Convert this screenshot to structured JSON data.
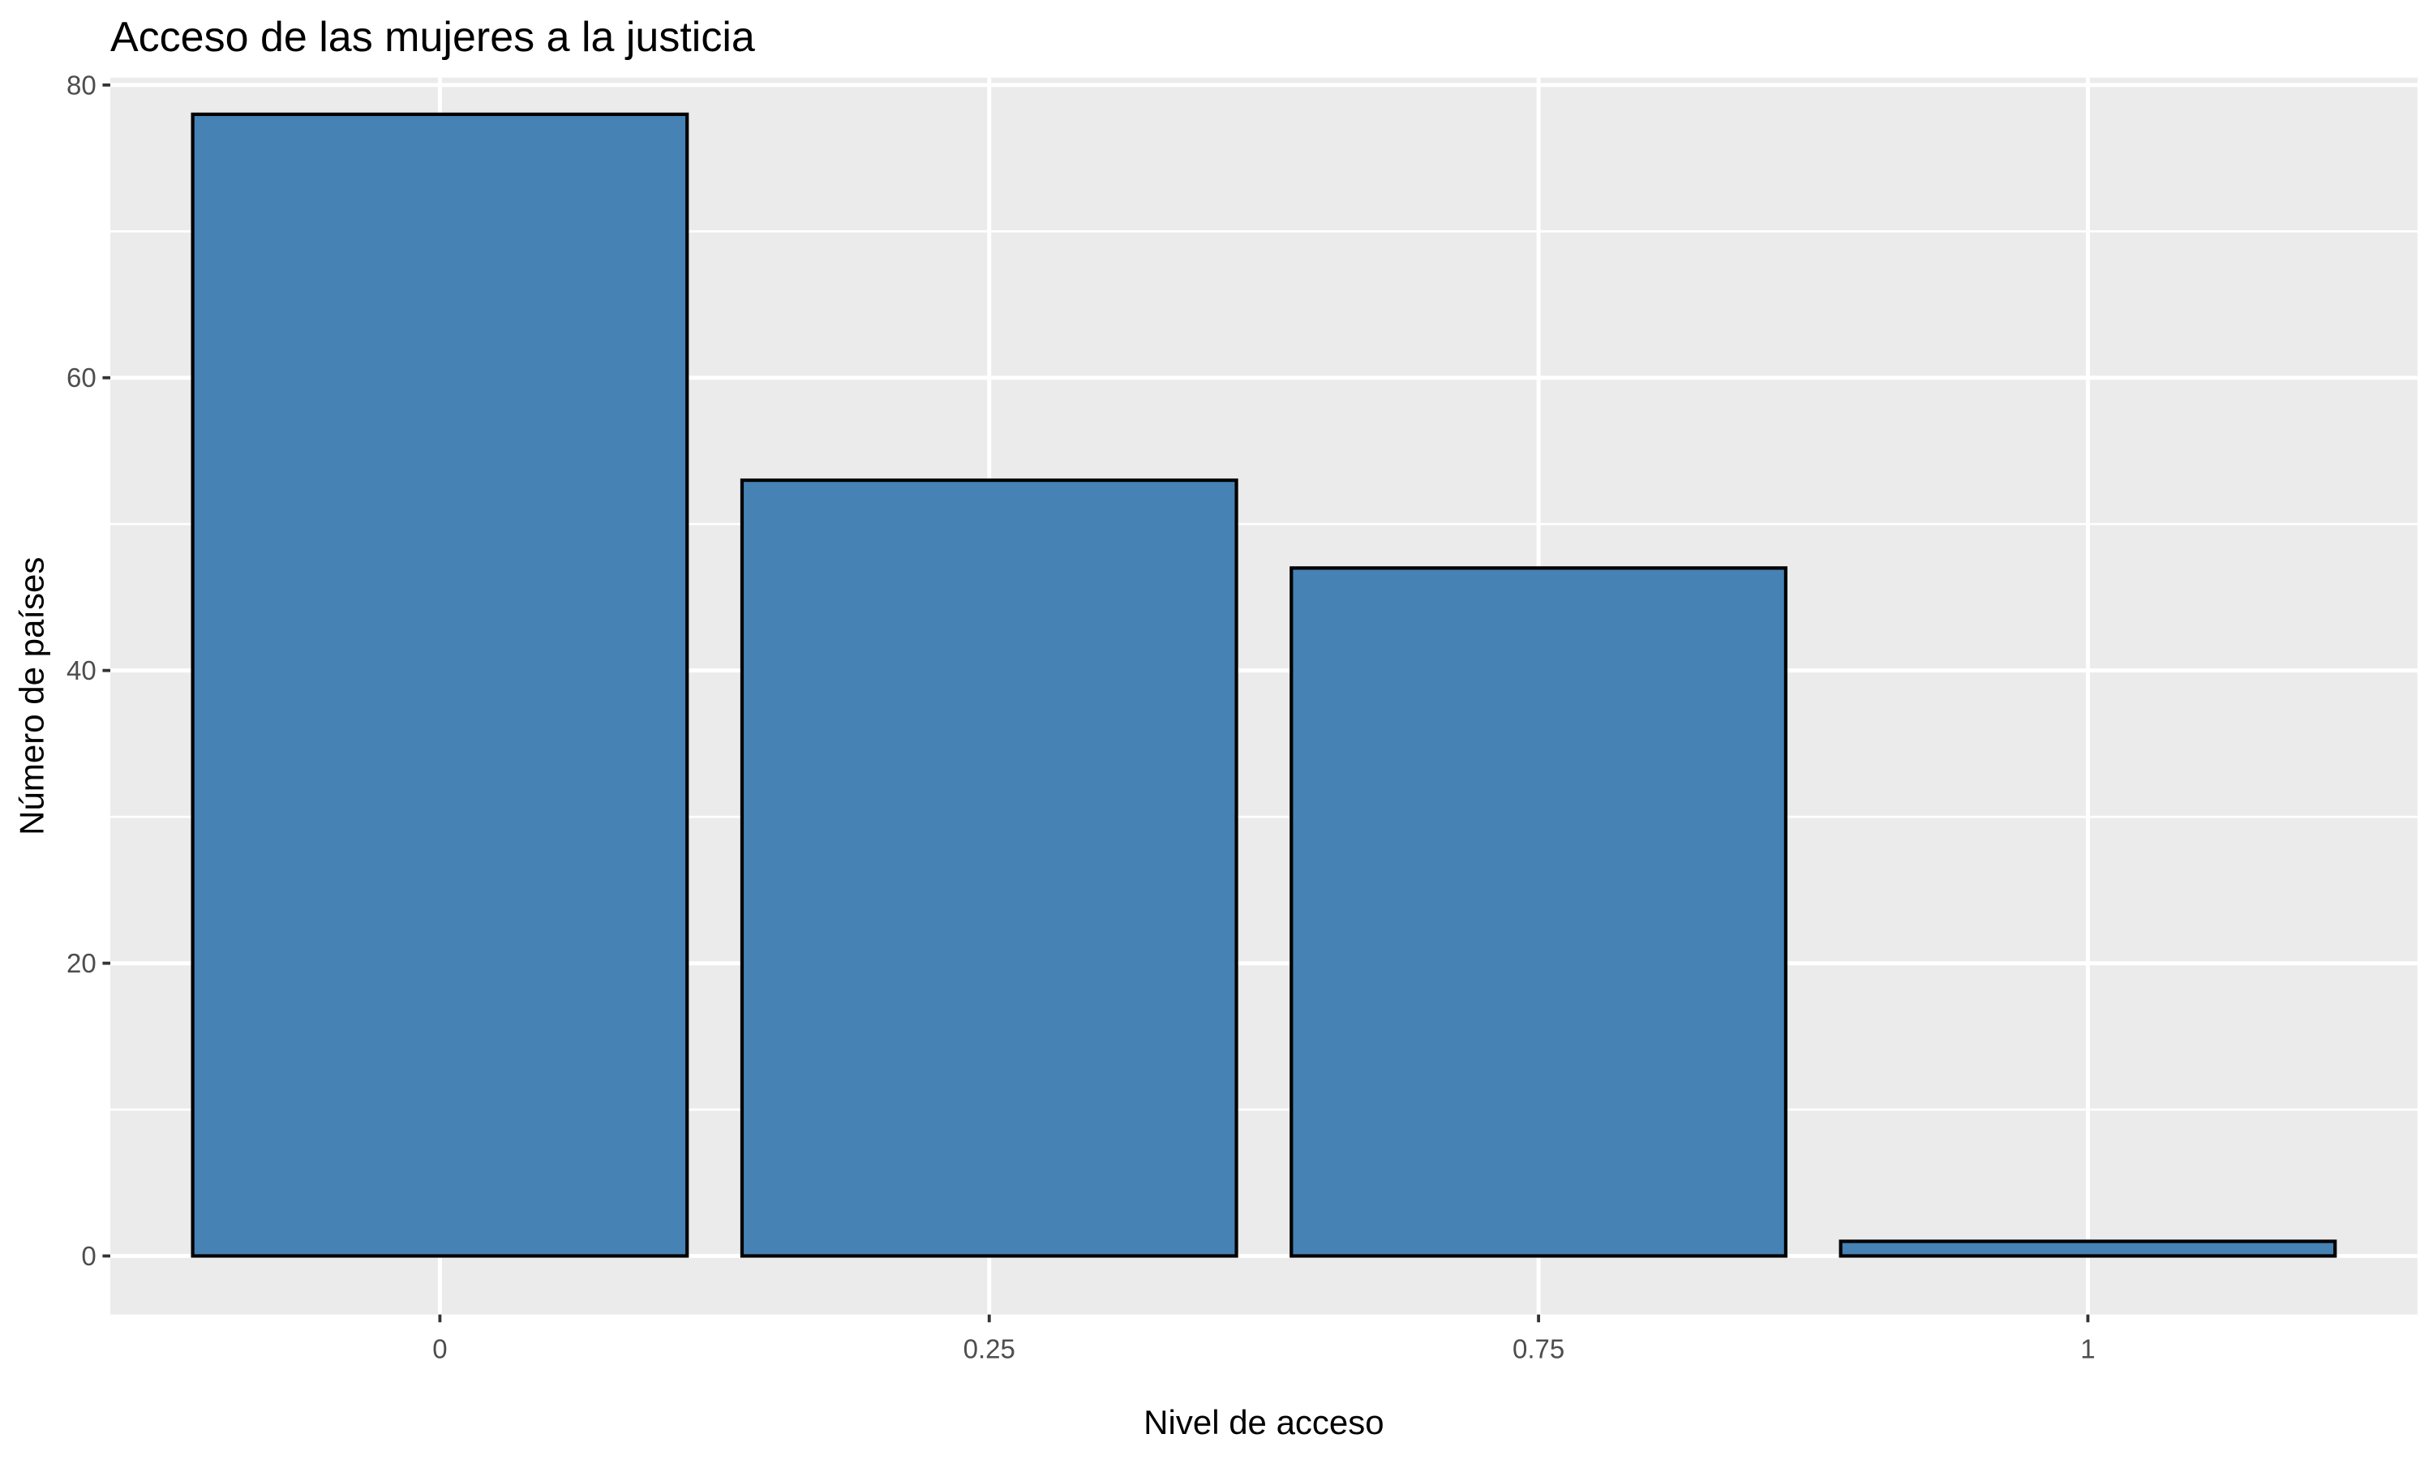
{
  "chart_data": {
    "type": "bar",
    "title": "Acceso de las mujeres a la justicia",
    "xlabel": "Nivel de acceso",
    "ylabel": "Número de países",
    "categories": [
      "0",
      "0.25",
      "0.75",
      "1"
    ],
    "values": [
      78,
      53,
      47,
      1
    ],
    "ylim": [
      -4,
      80.5
    ],
    "yticks": [
      0,
      20,
      40,
      60,
      80
    ],
    "yticks_minor": [
      10,
      30,
      50,
      70
    ],
    "grid": true,
    "legend": "none",
    "colors": {
      "bar_fill": "#4682b4",
      "bar_stroke": "#000000",
      "panel_background": "#ebebeb",
      "grid_major": "#ffffff",
      "grid_minor": "#ffffff",
      "tick_mark": "#333333"
    }
  }
}
